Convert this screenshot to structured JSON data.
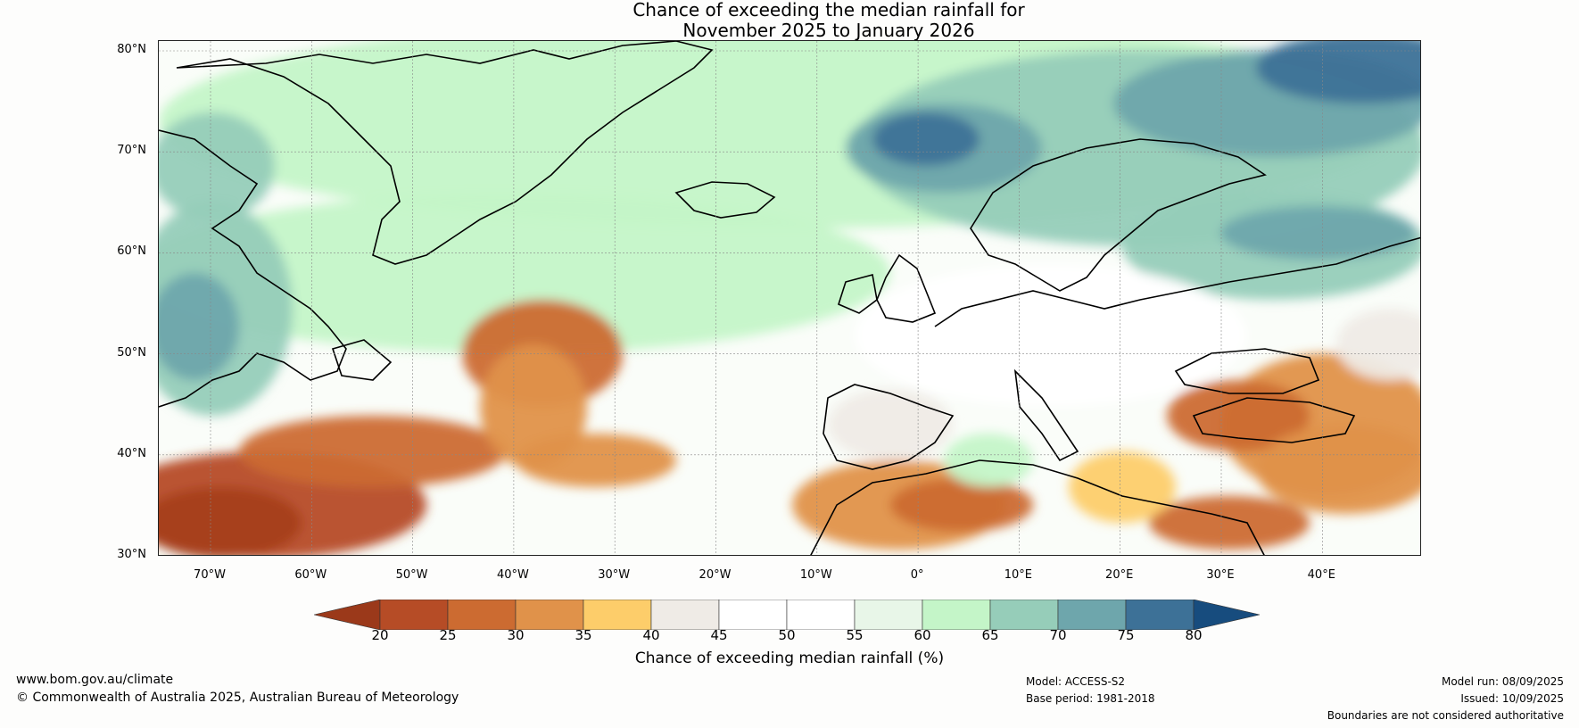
{
  "title_line1": "Chance of exceeding the median rainfall for",
  "title_line2": "November 2025 to January 2026",
  "lat_labels": [
    "80°N",
    "70°N",
    "60°N",
    "50°N",
    "40°N",
    "30°N"
  ],
  "lon_labels": [
    "70°W",
    "60°W",
    "50°W",
    "40°W",
    "30°W",
    "20°W",
    "10°W",
    "0°",
    "10°E",
    "20°E",
    "30°E",
    "40°E"
  ],
  "colorbar": {
    "ticks": [
      "20",
      "25",
      "30",
      "35",
      "40",
      "45",
      "50",
      "55",
      "60",
      "65",
      "70",
      "75",
      "80"
    ],
    "colors": [
      "#a7401f",
      "#b64c26",
      "#cc6b31",
      "#e0924a",
      "#fdcd6a",
      "#efebe6",
      "#ffffff",
      "#ffffff",
      "#e8f6e8",
      "#c4f5c8",
      "#96cdb9",
      "#6ea6ac",
      "#3d7197"
    ],
    "under_color": "#9b391a",
    "over_color": "#174c7e",
    "label": "Chance of exceeding median rainfall (%)"
  },
  "footer": {
    "url": "www.bom.gov.au/climate",
    "copyright": "© Commonwealth of Australia 2025, Australian Bureau of Meteorology",
    "model": "Model: ACCESS-S2",
    "base_period": "Base period: 1981-2018",
    "model_run": "Model run: 08/09/2025",
    "issued": "Issued: 10/09/2025",
    "disclaimer": "Boundaries are not considered authoritative"
  }
}
